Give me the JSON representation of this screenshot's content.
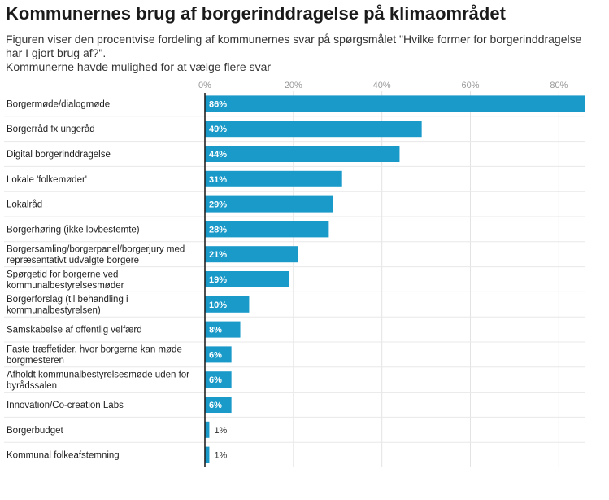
{
  "title": "Kommunernes brug af borgerinddragelse på klimaområdet",
  "subtitle_lines": [
    "Figuren viser den procentvise fordeling af kommunernes svar på spørgsmålet \"Hvilke former for borgerinddragelse",
    "har I gjort brug af?\".",
    "Kommunerne havde mulighed for at vælge flere svar"
  ],
  "chart_data": {
    "type": "bar",
    "orientation": "horizontal",
    "title": "Kommunernes brug af borgerinddragelse på klimaområdet",
    "xlabel": "",
    "ylabel": "",
    "xlim": [
      0,
      86
    ],
    "ticks": [
      0,
      20,
      40,
      60,
      80
    ],
    "tick_labels": [
      "0%",
      "20%",
      "40%",
      "60%",
      "80%"
    ],
    "grid": true,
    "categories": [
      [
        "Borgermøde/dialogmøde"
      ],
      [
        "Borgerråd fx ungeråd"
      ],
      [
        "Digital borgerinddragelse"
      ],
      [
        "Lokale 'folkemøder'"
      ],
      [
        "Lokalråd"
      ],
      [
        "Borgerhøring (ikke lovbestemte)"
      ],
      [
        "Borgersamling/borgerpanel/borgerjury med",
        "repræsentativt udvalgte borgere"
      ],
      [
        "Spørgetid for borgerne ved",
        "kommunalbestyrelsesmøder"
      ],
      [
        "Borgerforslag (til behandling i",
        "kommunalbestyrelsen)"
      ],
      [
        "Samskabelse af offentlig velfærd"
      ],
      [
        "Faste træffetider, hvor borgerne kan møde",
        "borgmesteren"
      ],
      [
        "Afholdt kommunalbestyrelsesmøde uden for",
        "byrådssalen"
      ],
      [
        "Innovation/Co-creation Labs"
      ],
      [
        "Borgerbudget"
      ],
      [
        "Kommunal folkeafstemning"
      ]
    ],
    "values": [
      86,
      49,
      44,
      31,
      29,
      28,
      21,
      19,
      10,
      8,
      6,
      6,
      6,
      1,
      1
    ],
    "value_labels": [
      "86%",
      "49%",
      "44%",
      "31%",
      "29%",
      "28%",
      "21%",
      "19%",
      "10%",
      "8%",
      "6%",
      "6%",
      "6%",
      "1%",
      "1%"
    ],
    "bar_color": "#1a9ac9"
  }
}
